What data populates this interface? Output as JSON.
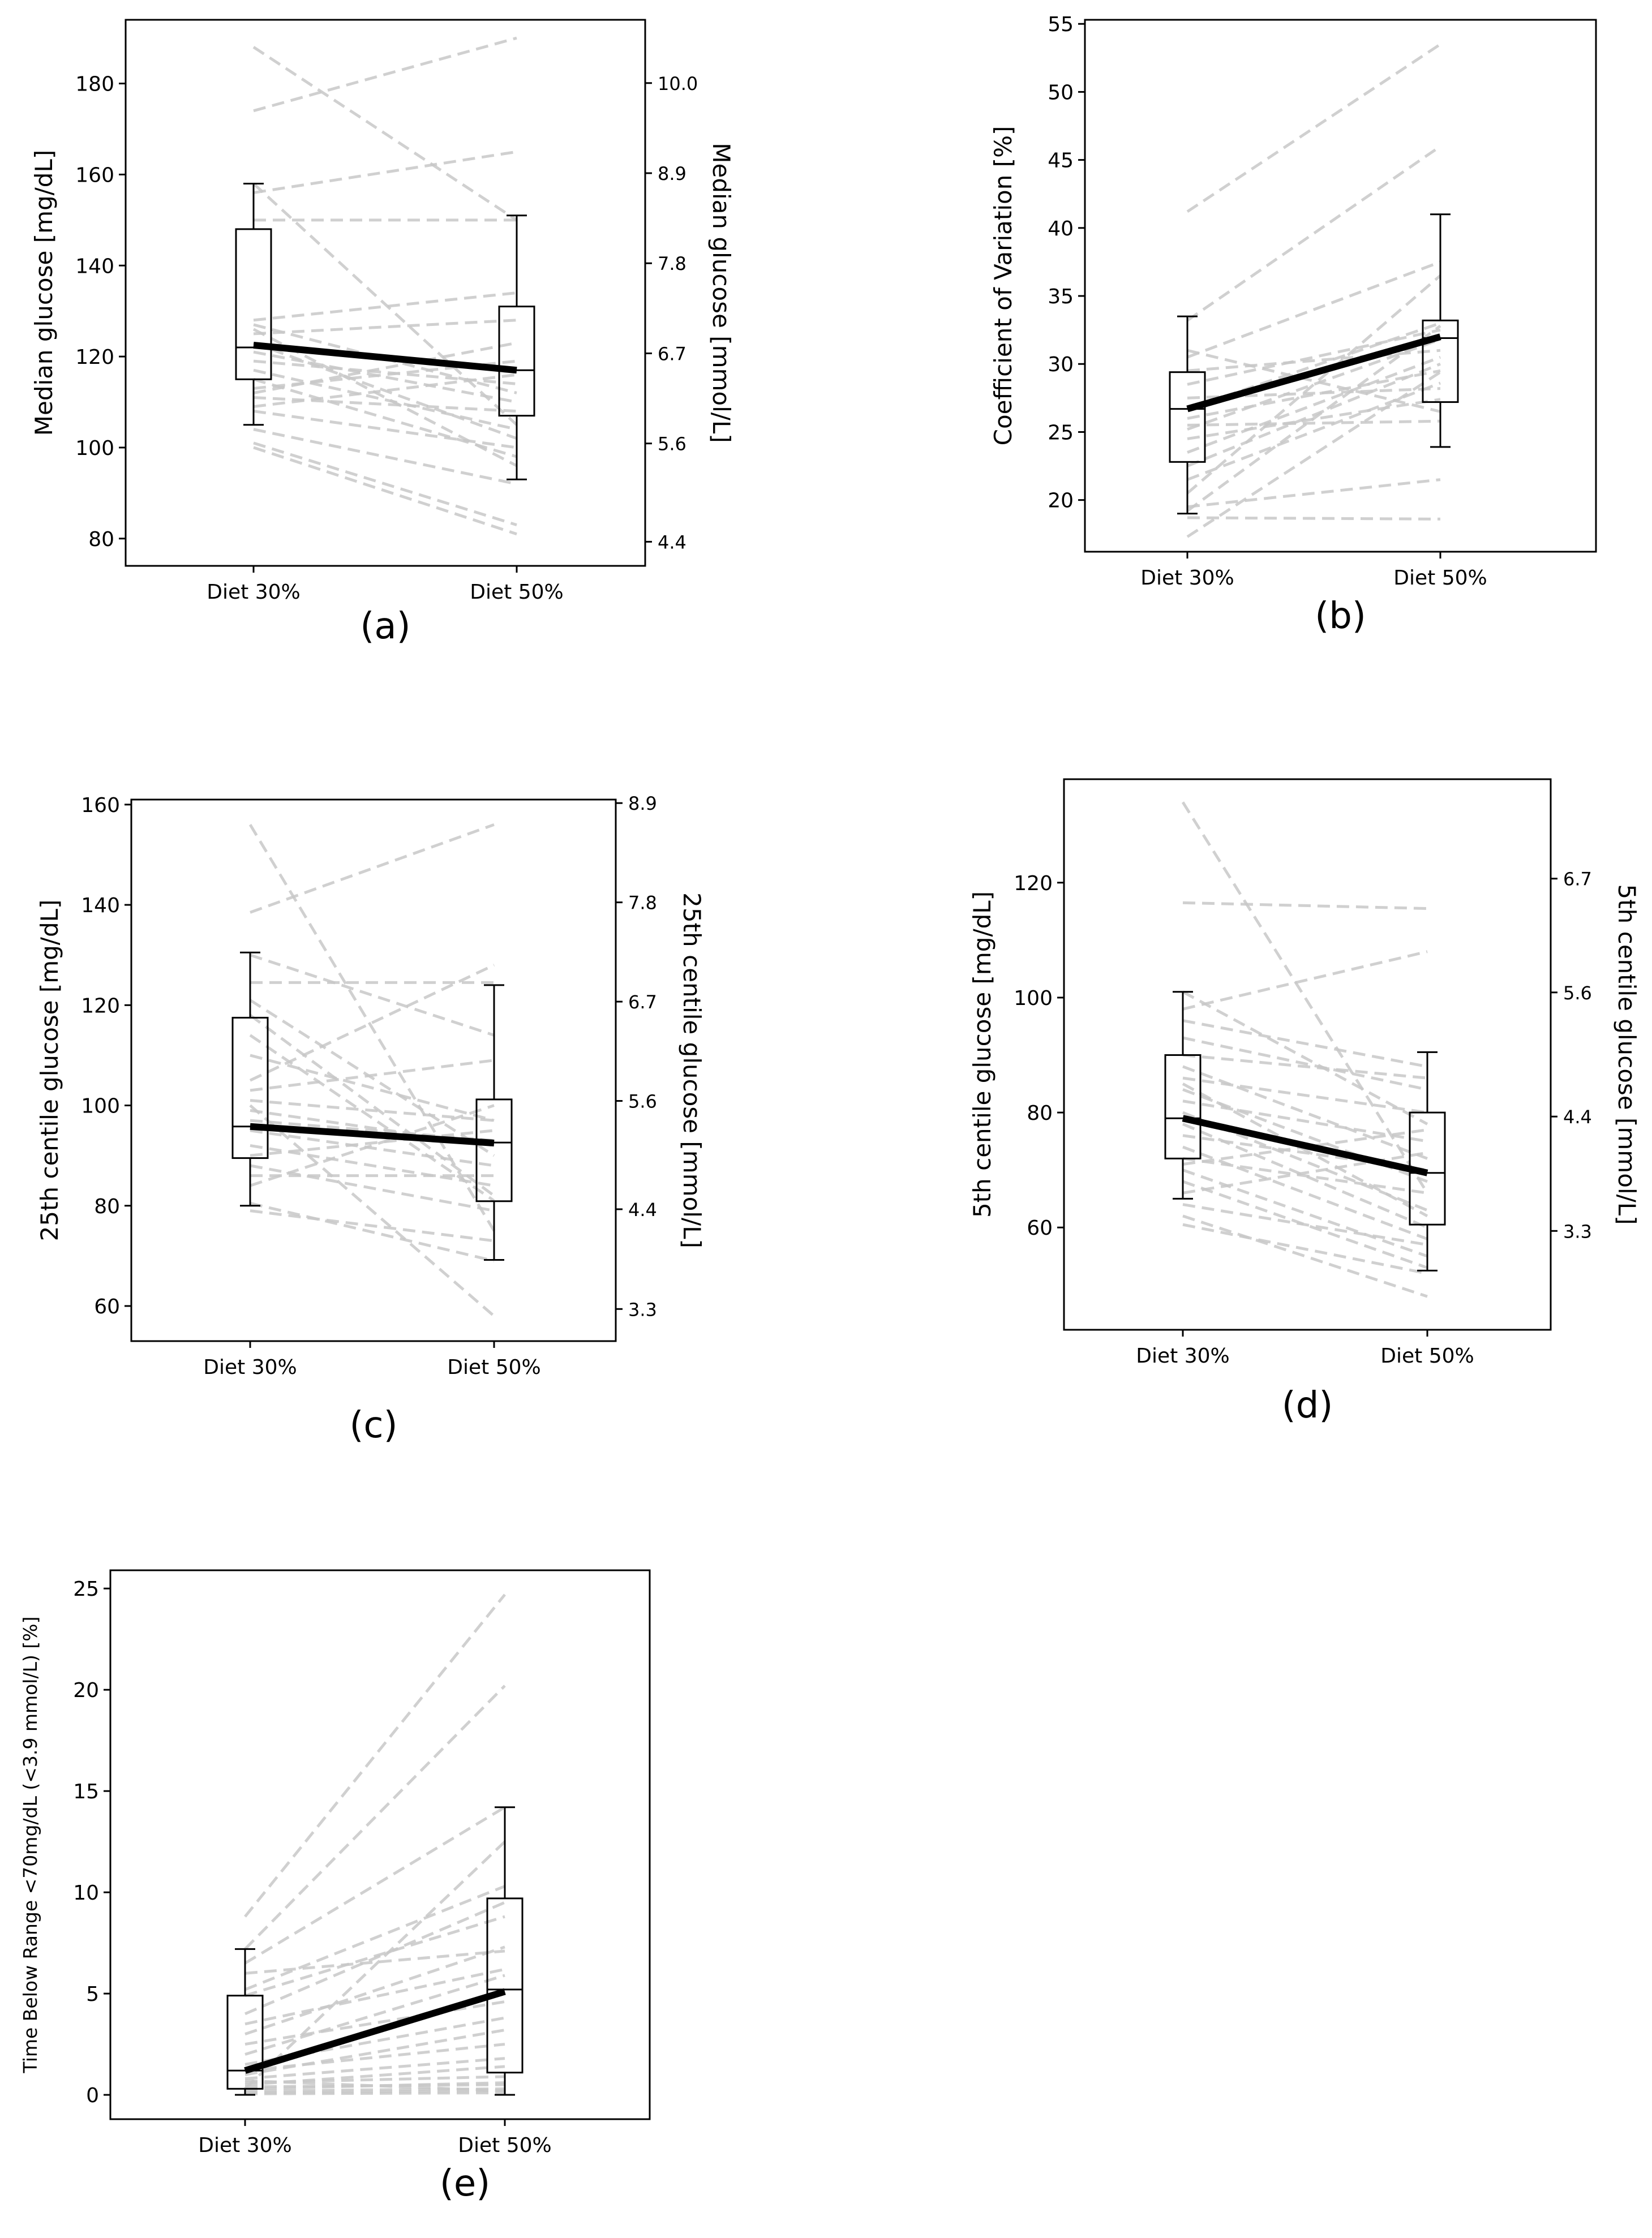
{
  "figure": {
    "panels": [
      "a",
      "b",
      "c",
      "d",
      "e"
    ]
  },
  "chart_data": [
    {
      "id": "a",
      "type": "box",
      "panel_label": "(a)",
      "categories": [
        "Diet 30%",
        "Diet 50%"
      ],
      "ylabel": "Median glucose [mg/dL]",
      "ylabel_right": "Median glucose [mmol/L]",
      "ylim": [
        74,
        194
      ],
      "yticks": [
        80,
        100,
        120,
        140,
        160,
        180
      ],
      "yticks_right": [
        {
          "label": "4.4",
          "at": 79.3
        },
        {
          "label": "5.6",
          "at": 100.9
        },
        {
          "label": "6.7",
          "at": 120.7
        },
        {
          "label": "7.8",
          "at": 140.5
        },
        {
          "label": "8.9",
          "at": 160.3
        },
        {
          "label": "10.0",
          "at": 180.1
        }
      ],
      "boxes": [
        {
          "category": "Diet 30%",
          "whisker_low": 105,
          "q1": 115,
          "median": 122,
          "q3": 148,
          "whisker_high": 158
        },
        {
          "category": "Diet 50%",
          "whisker_low": 93,
          "q1": 107,
          "median": 117,
          "q3": 131,
          "whisker_high": 151
        }
      ],
      "mean_line": [
        122.5,
        117
      ],
      "paired": [
        [
          188,
          150
        ],
        [
          174,
          190
        ],
        [
          158,
          105
        ],
        [
          156,
          165
        ],
        [
          150,
          150
        ],
        [
          128,
          134
        ],
        [
          127,
          112
        ],
        [
          125,
          128
        ],
        [
          123,
          102
        ],
        [
          121,
          110
        ],
        [
          119,
          114
        ],
        [
          117,
          104
        ],
        [
          115,
          98
        ],
        [
          113,
          119
        ],
        [
          111,
          108
        ],
        [
          109,
          116
        ],
        [
          108,
          100
        ],
        [
          104,
          92
        ],
        [
          101,
          83
        ],
        [
          100,
          81
        ],
        [
          126,
          96
        ],
        [
          112,
          123
        ]
      ]
    },
    {
      "id": "b",
      "type": "box",
      "panel_label": "(b)",
      "categories": [
        "Diet 30%",
        "Diet 50%"
      ],
      "ylabel": "Coefficient of Variation [%]",
      "ylim": [
        16.2,
        55.3
      ],
      "yticks": [
        20,
        25,
        30,
        35,
        40,
        45,
        50,
        55
      ],
      "boxes": [
        {
          "category": "Diet 30%",
          "whisker_low": 19,
          "q1": 22.8,
          "median": 26.7,
          "q3": 29.4,
          "whisker_high": 33.5
        },
        {
          "category": "Diet 50%",
          "whisker_low": 23.9,
          "q1": 27.2,
          "median": 31.9,
          "q3": 33.2,
          "whisker_high": 41
        }
      ],
      "mean_line": [
        26.7,
        32
      ],
      "paired": [
        [
          41.2,
          53.5
        ],
        [
          33.2,
          46
        ],
        [
          31,
          26.5
        ],
        [
          30.5,
          37.5
        ],
        [
          29.5,
          31
        ],
        [
          28.5,
          32.5
        ],
        [
          27.5,
          28.2
        ],
        [
          26.7,
          33
        ],
        [
          26,
          29.5
        ],
        [
          25.2,
          31.8
        ],
        [
          24.5,
          27.4
        ],
        [
          23.5,
          30.5
        ],
        [
          22.5,
          30
        ],
        [
          21.5,
          28.6
        ],
        [
          20.5,
          36.5
        ],
        [
          19.2,
          32.8
        ],
        [
          18.7,
          18.6
        ],
        [
          17.3,
          29.4
        ],
        [
          19.5,
          21.5
        ],
        [
          25.5,
          25.8
        ]
      ]
    },
    {
      "id": "c",
      "type": "box",
      "panel_label": "(c)",
      "categories": [
        "Diet 30%",
        "Diet 50%"
      ],
      "ylabel": "25th centile glucose [mg/dL]",
      "ylabel_right": "25th centile glucose [mmol/L]",
      "ylim": [
        53,
        161
      ],
      "yticks": [
        60,
        80,
        100,
        120,
        140,
        160
      ],
      "yticks_right": [
        {
          "label": "3.3",
          "at": 59.4
        },
        {
          "label": "4.4",
          "at": 79.3
        },
        {
          "label": "5.6",
          "at": 100.9
        },
        {
          "label": "6.7",
          "at": 120.7
        },
        {
          "label": "7.8",
          "at": 140.5
        },
        {
          "label": "8.9",
          "at": 160.3
        }
      ],
      "boxes": [
        {
          "category": "Diet 30%",
          "whisker_low": 80,
          "q1": 89.5,
          "median": 95.8,
          "q3": 117.5,
          "whisker_high": 130.5
        },
        {
          "category": "Diet 50%",
          "whisker_low": 69.2,
          "q1": 80.9,
          "median": 92.6,
          "q3": 101.2,
          "whisker_high": 124
        }
      ],
      "mean_line": [
        95.8,
        92.5
      ],
      "paired": [
        [
          156,
          75
        ],
        [
          138.5,
          156
        ],
        [
          130,
          114
        ],
        [
          124.5,
          124.5
        ],
        [
          121,
          90
        ],
        [
          118,
          82
        ],
        [
          110,
          97
        ],
        [
          105,
          128
        ],
        [
          101,
          97
        ],
        [
          99,
          92
        ],
        [
          97,
          93
        ],
        [
          95,
          88
        ],
        [
          92,
          84
        ],
        [
          90,
          95
        ],
        [
          88,
          79
        ],
        [
          86,
          86
        ],
        [
          84,
          100
        ],
        [
          80.5,
          69
        ],
        [
          79,
          73
        ],
        [
          100,
          58
        ],
        [
          114,
          81
        ],
        [
          103,
          109
        ]
      ]
    },
    {
      "id": "d",
      "type": "box",
      "panel_label": "(d)",
      "categories": [
        "Diet 30%",
        "Diet 50%"
      ],
      "ylabel": "5th centile glucose [mg/dL]",
      "ylabel_right": "5th centile glucose [mmol/L]",
      "ylim": [
        42.2,
        138
      ],
      "yticks": [
        60,
        80,
        100,
        120
      ],
      "yticks_right": [
        {
          "label": "3.3",
          "at": 59.4
        },
        {
          "label": "4.4",
          "at": 79.3
        },
        {
          "label": "5.6",
          "at": 100.9
        },
        {
          "label": "6.7",
          "at": 120.7
        }
      ],
      "boxes": [
        {
          "category": "Diet 30%",
          "whisker_low": 65,
          "q1": 72,
          "median": 79,
          "q3": 90,
          "whisker_high": 101
        },
        {
          "category": "Diet 50%",
          "whisker_low": 52.5,
          "q1": 60.5,
          "median": 69.5,
          "q3": 80,
          "whisker_high": 90.5
        }
      ],
      "mean_line": [
        79,
        69.5
      ],
      "paired": [
        [
          134,
          66
        ],
        [
          116.5,
          115.5
        ],
        [
          101,
          78
        ],
        [
          98,
          108
        ],
        [
          96,
          88
        ],
        [
          93,
          84
        ],
        [
          90,
          86
        ],
        [
          88,
          72
        ],
        [
          86,
          80
        ],
        [
          84,
          68
        ],
        [
          82,
          75
        ],
        [
          80,
          63
        ],
        [
          78,
          60
        ],
        [
          76,
          70
        ],
        [
          74,
          58
        ],
        [
          72,
          66
        ],
        [
          70,
          55
        ],
        [
          68,
          53
        ],
        [
          66,
          73
        ],
        [
          64,
          57
        ],
        [
          62,
          48
        ],
        [
          60.5,
          52
        ],
        [
          85,
          62
        ],
        [
          71,
          77
        ]
      ]
    },
    {
      "id": "e",
      "type": "box",
      "panel_label": "(e)",
      "categories": [
        "Diet 30%",
        "Diet 50%"
      ],
      "ylabel": "Time Below Range <70mg/dL (<3.9 mmol/L) [%]",
      "ylim": [
        -1.2,
        25.9
      ],
      "yticks": [
        0,
        5,
        10,
        15,
        20,
        25
      ],
      "boxes": [
        {
          "category": "Diet 30%",
          "whisker_low": 0,
          "q1": 0.3,
          "median": 1.2,
          "q3": 4.9,
          "whisker_high": 7.2
        },
        {
          "category": "Diet 50%",
          "whisker_low": 0,
          "q1": 1.1,
          "median": 5.2,
          "q3": 9.7,
          "whisker_high": 14.2
        }
      ],
      "mean_line": [
        1.2,
        5.1
      ],
      "paired": [
        [
          8.8,
          24.7
        ],
        [
          7.2,
          20.2
        ],
        [
          6.5,
          14.2
        ],
        [
          6,
          7.1
        ],
        [
          5.2,
          10.3
        ],
        [
          4.9,
          8.8
        ],
        [
          4,
          9.5
        ],
        [
          3.5,
          6.2
        ],
        [
          3,
          7.3
        ],
        [
          2.5,
          4.6
        ],
        [
          2,
          5.9
        ],
        [
          1.5,
          3.8
        ],
        [
          1.2,
          2.5
        ],
        [
          1,
          3.2
        ],
        [
          0.8,
          1.8
        ],
        [
          0.6,
          0.9
        ],
        [
          0.5,
          1.4
        ],
        [
          0.4,
          0.5
        ],
        [
          0.3,
          0.6
        ],
        [
          0.2,
          0.3
        ],
        [
          0.1,
          0.2
        ],
        [
          0.05,
          0.1
        ],
        [
          0.3,
          12.5
        ],
        [
          0.7,
          0.2
        ]
      ]
    }
  ]
}
